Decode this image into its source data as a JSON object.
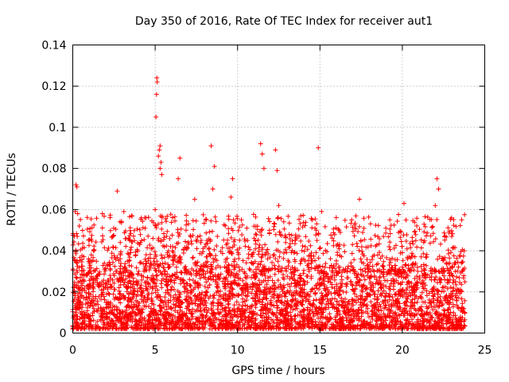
{
  "chart_data": {
    "type": "scatter",
    "title": "Day 350 of 2016, Rate Of TEC Index for receiver aut1",
    "xlabel": "GPS time / hours",
    "ylabel": "ROTI / TECUs",
    "xlim": [
      0,
      25
    ],
    "ylim": [
      0,
      0.14
    ],
    "xticks": [
      0,
      5,
      10,
      15,
      20,
      25
    ],
    "yticks": [
      0,
      0.02,
      0.04,
      0.06,
      0.08,
      0.1,
      0.12,
      0.14
    ],
    "xtick_labels": [
      "0",
      "5",
      "10",
      "15",
      "20",
      "25"
    ],
    "ytick_labels": [
      "0",
      "0.02",
      "0.04",
      "0.06",
      "0.08",
      "0.1",
      "0.12",
      "0.14"
    ],
    "grid": true,
    "marker": "+",
    "color": "#ff0000",
    "series": [
      {
        "x_range": [
          0,
          23.8
        ],
        "typical_y_range": [
          0.002,
          0.03
        ],
        "points": [
          {
            "x": 0.2,
            "y": 0.072
          },
          {
            "x": 0.25,
            "y": 0.071
          },
          {
            "x": 0.15,
            "y": 0.059
          },
          {
            "x": 0.3,
            "y": 0.058
          },
          {
            "x": 0.1,
            "y": 0.047
          },
          {
            "x": 0.4,
            "y": 0.052
          },
          {
            "x": 1.8,
            "y": 0.058
          },
          {
            "x": 2.7,
            "y": 0.069
          },
          {
            "x": 3.1,
            "y": 0.059
          },
          {
            "x": 5.1,
            "y": 0.124
          },
          {
            "x": 5.12,
            "y": 0.122
          },
          {
            "x": 5.08,
            "y": 0.116
          },
          {
            "x": 5.05,
            "y": 0.105
          },
          {
            "x": 5.3,
            "y": 0.091
          },
          {
            "x": 5.25,
            "y": 0.089
          },
          {
            "x": 5.2,
            "y": 0.086
          },
          {
            "x": 5.35,
            "y": 0.083
          },
          {
            "x": 5.3,
            "y": 0.08
          },
          {
            "x": 5.4,
            "y": 0.077
          },
          {
            "x": 5.0,
            "y": 0.06
          },
          {
            "x": 6.5,
            "y": 0.085
          },
          {
            "x": 6.4,
            "y": 0.075
          },
          {
            "x": 7.4,
            "y": 0.065
          },
          {
            "x": 8.4,
            "y": 0.091
          },
          {
            "x": 8.6,
            "y": 0.081
          },
          {
            "x": 8.5,
            "y": 0.07
          },
          {
            "x": 9.6,
            "y": 0.066
          },
          {
            "x": 9.7,
            "y": 0.075
          },
          {
            "x": 11.4,
            "y": 0.092
          },
          {
            "x": 11.5,
            "y": 0.087
          },
          {
            "x": 11.6,
            "y": 0.08
          },
          {
            "x": 12.3,
            "y": 0.089
          },
          {
            "x": 12.4,
            "y": 0.079
          },
          {
            "x": 12.5,
            "y": 0.062
          },
          {
            "x": 14.9,
            "y": 0.09
          },
          {
            "x": 15.1,
            "y": 0.059
          },
          {
            "x": 17.4,
            "y": 0.065
          },
          {
            "x": 20.1,
            "y": 0.063
          },
          {
            "x": 22.1,
            "y": 0.075
          },
          {
            "x": 22.2,
            "y": 0.07
          },
          {
            "x": 22.0,
            "y": 0.062
          },
          {
            "x": 23.6,
            "y": 0.055
          }
        ]
      }
    ]
  }
}
